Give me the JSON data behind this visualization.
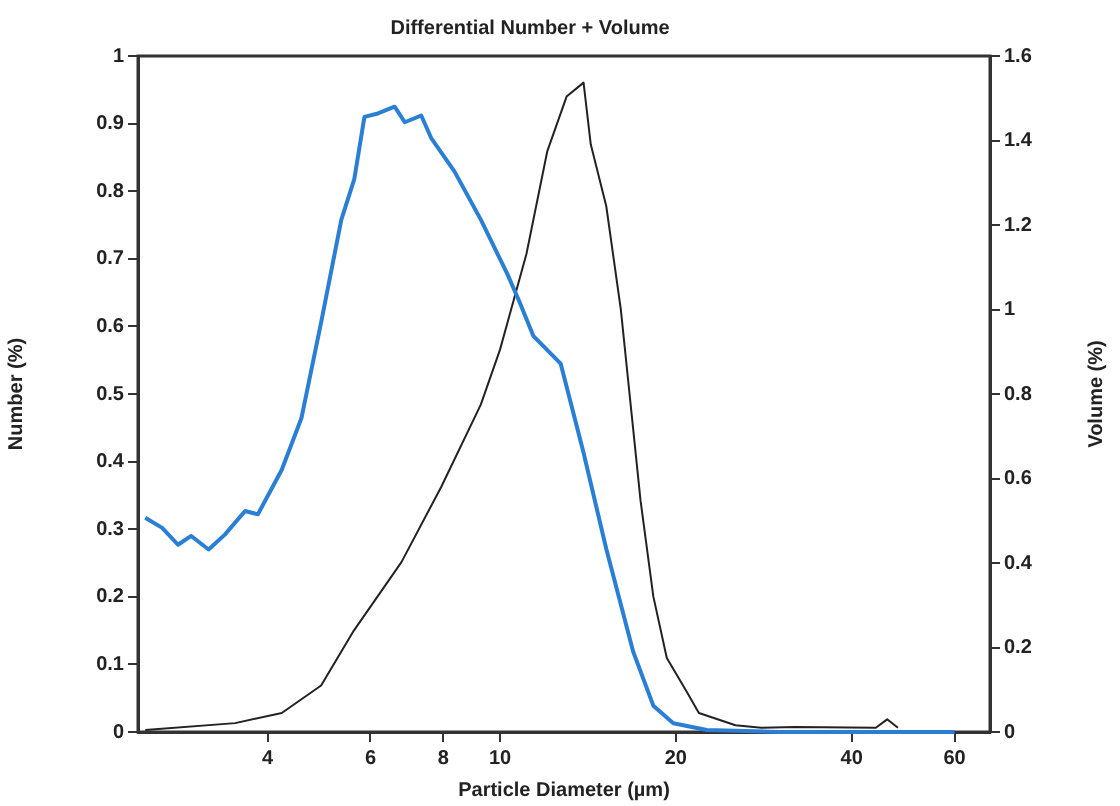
{
  "chart_data": {
    "type": "line",
    "title": "Differential Number + Volume",
    "xlabel": "Particle Diameter (µm)",
    "ylabel": "Number (%)",
    "y2label": "Volume (%)",
    "log": "x",
    "xlim": [
      2.4,
      69
    ],
    "xticks": [
      4,
      6,
      8,
      10,
      20,
      40,
      60
    ],
    "ylim": [
      0,
      1
    ],
    "yticks": [
      0,
      0.1,
      0.2,
      0.3,
      0.4,
      0.5,
      0.6,
      0.7,
      0.8,
      0.9,
      1
    ],
    "y2lim": [
      0,
      1.6
    ],
    "y2ticks": [
      0,
      0.2,
      0.4,
      0.6,
      0.8,
      1,
      1.2,
      1.4,
      1.6
    ],
    "grid": false,
    "legend": false,
    "marker": "none",
    "line_style": "solid",
    "series": [
      {
        "color": "#2a7fd4",
        "x": [
          2.47,
          2.64,
          2.81,
          2.96,
          3.17,
          3.38,
          3.66,
          3.85,
          4.23,
          4.57,
          4.94,
          5.35,
          5.63,
          5.86,
          6.18,
          6.6,
          6.87,
          7.33,
          7.62,
          8.36,
          9.27,
          10.3,
          10.8,
          11.4,
          12.7,
          13.9,
          15.2,
          16.9,
          18.3,
          19.8,
          22.6,
          30,
          45,
          60
        ],
        "values": [
          0.317,
          0.302,
          0.277,
          0.29,
          0.27,
          0.292,
          0.327,
          0.322,
          0.388,
          0.464,
          0.606,
          0.758,
          0.818,
          0.91,
          0.915,
          0.925,
          0.902,
          0.912,
          0.879,
          0.829,
          0.758,
          0.677,
          0.636,
          0.586,
          0.545,
          0.413,
          0.271,
          0.119,
          0.039,
          0.013,
          0.003,
          0,
          0,
          0
        ]
      },
      {
        "color": "#222222",
        "axis": "y2",
        "x": [
          2.47,
          3.52,
          4.23,
          4.94,
          5.62,
          6.78,
          7.93,
          9.27,
          10.0,
          11.1,
          12.05,
          13.0,
          13.9,
          14.3,
          15.2,
          16.1,
          17.4,
          18.3,
          19.3,
          20.9,
          21.9,
          25.3,
          28.0,
          32,
          44,
          46,
          48
        ],
        "values": [
          0.005,
          0.021,
          0.045,
          0.11,
          0.24,
          0.402,
          0.58,
          0.775,
          0.905,
          1.132,
          1.375,
          1.504,
          1.537,
          1.391,
          1.245,
          1.0,
          0.548,
          0.321,
          0.175,
          0.094,
          0.045,
          0.016,
          0.01,
          0.012,
          0.01,
          0.03,
          0.01
        ]
      }
    ]
  }
}
